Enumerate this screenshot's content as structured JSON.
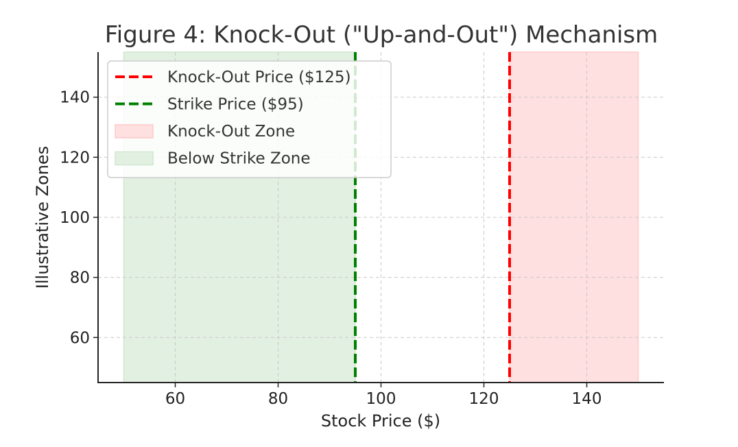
{
  "chart_data": {
    "type": "area",
    "title": "Figure 4: Knock-Out (\"Up-and-Out\") Mechanism",
    "xlabel": "Stock Price ($)",
    "ylabel": "Illustrative Zones",
    "xlim": [
      45,
      155
    ],
    "ylim": [
      45,
      155
    ],
    "xticks": [
      60,
      80,
      100,
      120,
      140
    ],
    "yticks": [
      60,
      80,
      100,
      120,
      140
    ],
    "grid": true,
    "legend_position": "top-left",
    "vlines": [
      {
        "name": "Knock-Out Price ($125)",
        "x": 125,
        "color": "#ff0000",
        "style": "dashed"
      },
      {
        "name": "Strike Price ($95)",
        "x": 95,
        "color": "#008000",
        "style": "dashed"
      }
    ],
    "spans": [
      {
        "name": "Knock-Out Zone",
        "x_start": 125,
        "x_end": 150,
        "color": "#ffe0e0",
        "edge": "#ffc8c8"
      },
      {
        "name": "Below Strike Zone",
        "x_start": 50,
        "x_end": 95,
        "color": "#e2f0e2",
        "edge": "#cfe6cf"
      }
    ]
  }
}
